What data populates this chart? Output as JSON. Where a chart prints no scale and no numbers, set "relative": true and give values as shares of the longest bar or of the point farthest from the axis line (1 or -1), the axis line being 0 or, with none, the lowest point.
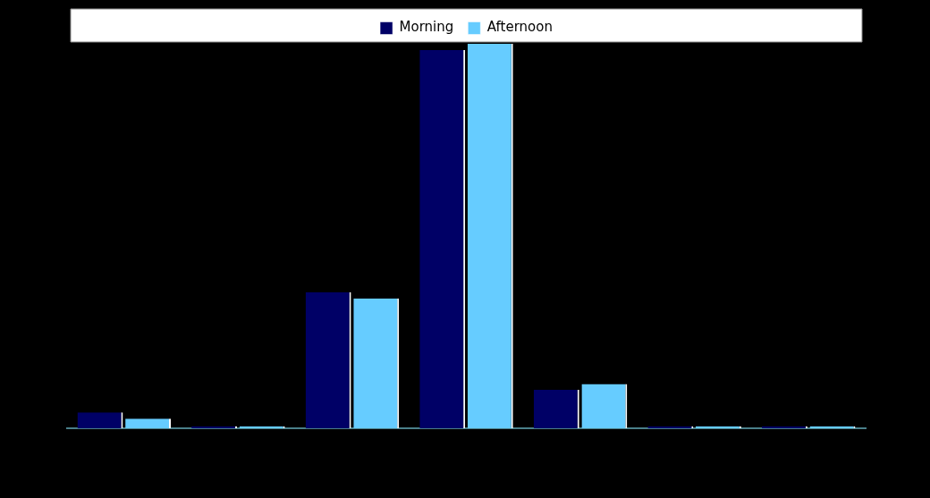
{
  "chart_data": {
    "type": "bar",
    "relative": true,
    "categories": [
      null,
      null,
      null,
      null,
      null,
      null,
      null
    ],
    "series": [
      {
        "name": "Morning",
        "color": "#000066",
        "values": [
          0.041,
          0.005,
          0.354,
          0.984,
          0.1,
          0.005,
          0.005
        ]
      },
      {
        "name": "Afternoon",
        "color": "#66ccff",
        "values": [
          0.025,
          0.005,
          0.338,
          1,
          0.115,
          0.005,
          0.005
        ]
      }
    ],
    "legend": "top"
  }
}
